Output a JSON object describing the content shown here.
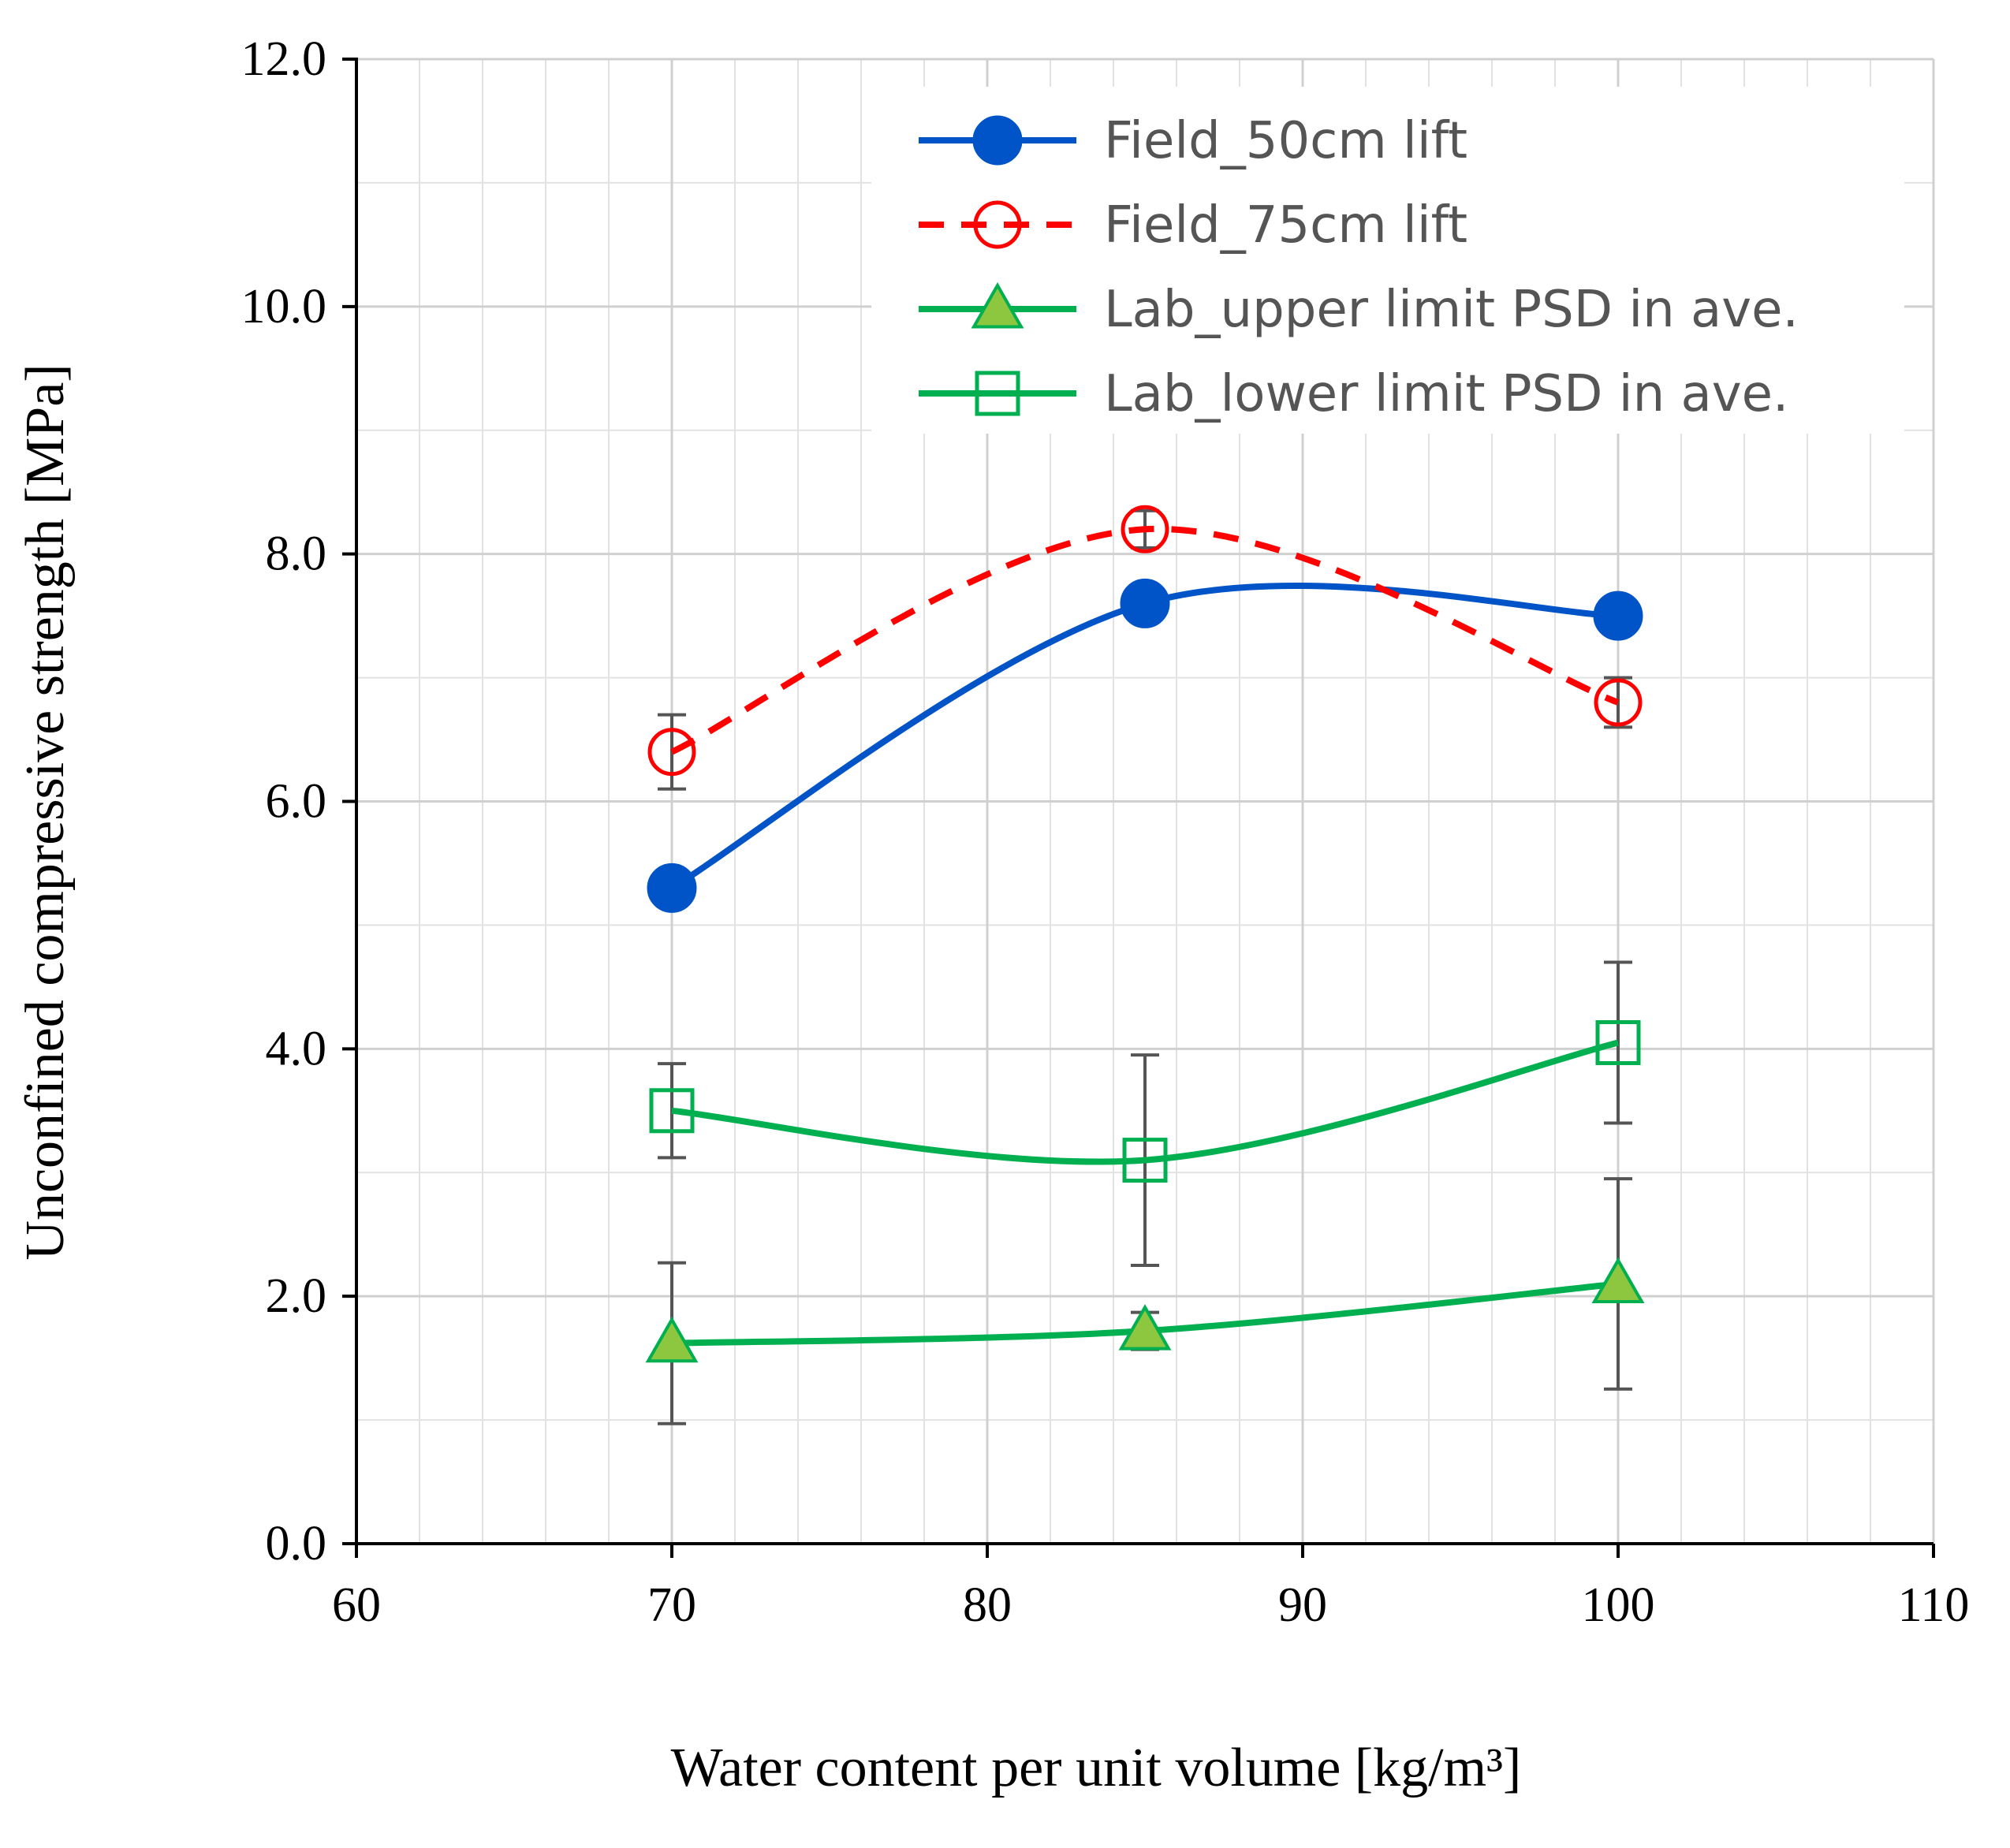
{
  "chart_data": {
    "type": "line",
    "xlabel": "Water content per unit volume [kg/m³]",
    "ylabel": "Unconfined compressive strength [MPa]",
    "xlim": [
      60,
      110
    ],
    "ylim": [
      0,
      12
    ],
    "x_ticks": [
      "60",
      "70",
      "80",
      "90",
      "100",
      "110"
    ],
    "y_ticks": [
      "0.0",
      "2.0",
      "4.0",
      "6.0",
      "8.0",
      "10.0",
      "12.0"
    ],
    "grid": true,
    "legend_position": "top-right",
    "series": [
      {
        "name": "Field_50cm lift",
        "x": [
          70,
          85,
          100
        ],
        "y": [
          5.3,
          7.6,
          7.5
        ],
        "error": [
          0.1,
          0.15,
          0.15
        ],
        "color": "#0054c7",
        "marker": "filled-circle",
        "line": "solid-smooth"
      },
      {
        "name": "Field_75cm lift",
        "x": [
          70,
          85,
          100
        ],
        "y": [
          6.4,
          8.2,
          6.8
        ],
        "error": [
          0.3,
          0.15,
          0.2
        ],
        "color": "#ff0000",
        "marker": "open-circle",
        "line": "dashed-smooth"
      },
      {
        "name": "Lab_upper limit PSD in ave.",
        "x": [
          70,
          85,
          100
        ],
        "y": [
          1.62,
          1.72,
          2.1
        ],
        "error": [
          0.65,
          0.15,
          0.85
        ],
        "color": "#00b050",
        "marker": "filled-triangle",
        "line": "solid-smooth"
      },
      {
        "name": "Lab_lower limit PSD in ave.",
        "x": [
          70,
          85,
          100
        ],
        "y": [
          3.5,
          3.1,
          4.05
        ],
        "error": [
          0.38,
          0.85,
          0.65
        ],
        "color": "#00b050",
        "marker": "open-square",
        "line": "solid-smooth"
      }
    ]
  }
}
